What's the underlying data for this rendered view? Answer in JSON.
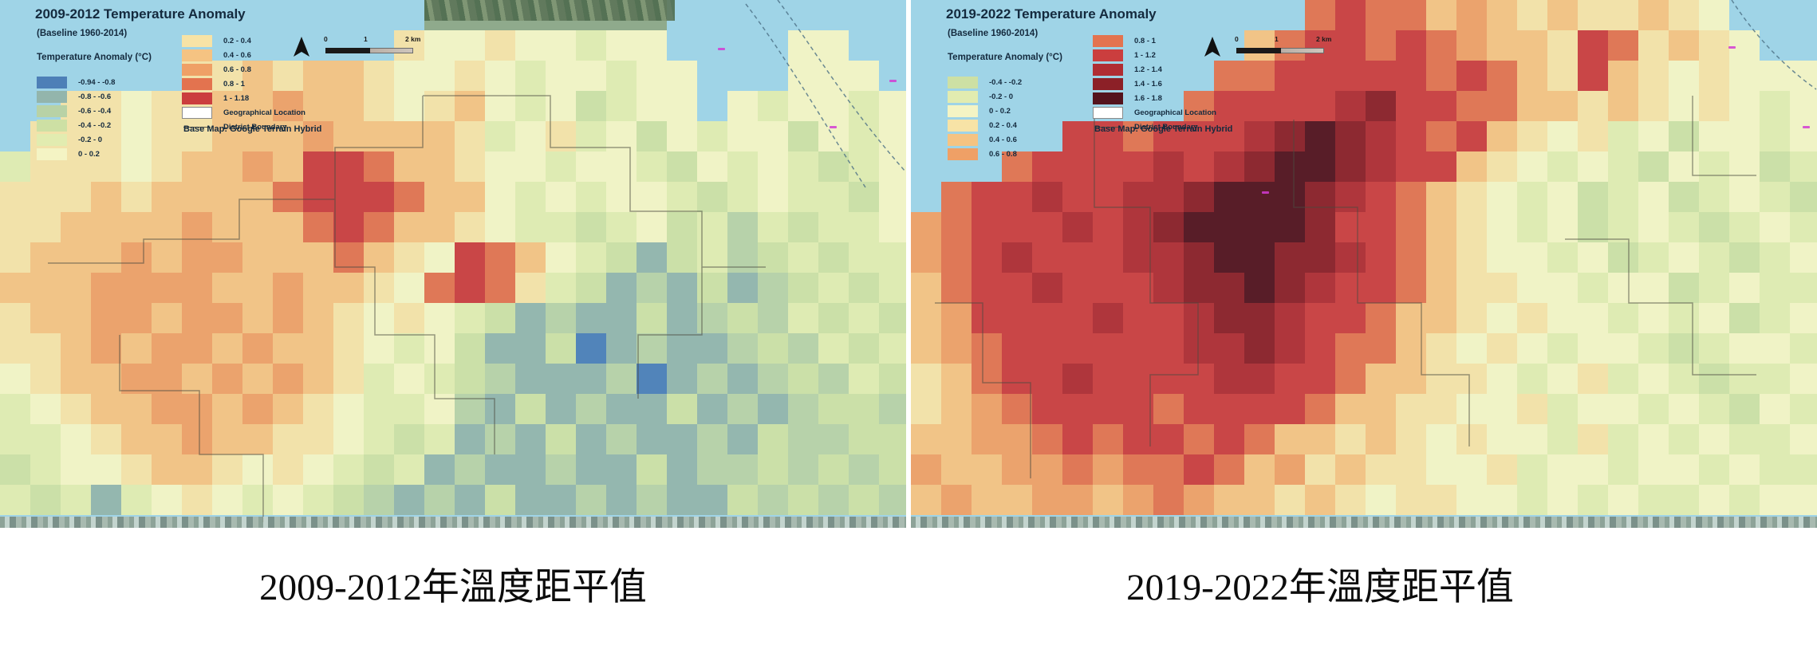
{
  "palette": {
    "a": "#4d7fb7",
    "b": "#93b5ac",
    "c": "#b8d2a6",
    "d": "#cde0a4",
    "e": "#e2ecb0",
    "f": "#f4f4c4",
    "g": "#f7e3a6",
    "h": "#f5c382",
    "i": "#efa066",
    "j": "#e3734f",
    "k": "#cb3e3e",
    "l": "#b02d33",
    "m": "#8c2027",
    "n": "#54131d",
    "t": "#8ea887"
  },
  "water_color": "#9fd4e7",
  "panels": [
    {
      "title": "2009-2012 Temperature Anomaly",
      "baseline": "(Baseline 1960-2014)",
      "legend_title": "Temperature Anomaly (°C)",
      "bins_left": [
        {
          "label": "-0.94 - -0.8",
          "color": "a"
        },
        {
          "label": "-0.8 - -0.6",
          "color": "b"
        },
        {
          "label": "-0.6 - -0.4",
          "color": "c"
        },
        {
          "label": "-0.4 - -0.2",
          "color": "d"
        },
        {
          "label": "-0.2 - 0",
          "color": "e"
        },
        {
          "label": "0 - 0.2",
          "color": "f"
        }
      ],
      "bins_right": [
        {
          "label": "0.2 - 0.4",
          "color": "g"
        },
        {
          "label": "0.4 - 0.6",
          "color": "h"
        },
        {
          "label": "0.6 - 0.8",
          "color": "i"
        },
        {
          "label": "0.8 - 1",
          "color": "j"
        },
        {
          "label": "1 - 1.18",
          "color": "k"
        }
      ],
      "geographical_location_label": "Geographical Location",
      "district_boundary_label": "District Boundary",
      "basemap_label": "Base Map: Google Terrain Hybrid",
      "scale": [
        "0",
        "1",
        "2 km"
      ],
      "caption": "2009-2012年溫度距平值",
      "grid": [
        "..............tttttttt........",
        ".............gffgffeff....ff..",
        "......gghghhgffgfeffeff...fff.",
        "..ggfgghhihhgfghfefdeff.feffef",
        ".gggfgghhhihhhhgefgefdfeffdfef",
        "egggfghhihkkjhhgffeffedfefedef",
        "ggghghhhhjkkkjhhfefeffedefeedf",
        "gghhhhihhhjkjhhgfeedefdecedeef",
        "ghhhihiihhhjhgfkjhfedbdecdedee",
        "hhhiiiihhihhgfjkjgedbcbdbcdede",
        "ghhiihiihihgfgfedbcbbdbcdceded",
        "gghihiihihhgfefdbbdabcbbcdcede",
        "fghhiihihihgefedcbbbcabcbcdced",
        "efghhiihihgfeefcbdbcbbdbcbcddc",
        "eefghhihhggfedebcbdbcbbcbdccdd",
        "deffghhgfgfedebcbbcbbdbccdcdcd",
        "edebefgfefedcbcbdbbcbcbbdcdcdc"
      ]
    },
    {
      "title": "2019-2022 Temperature Anomaly",
      "baseline": "(Baseline 1960-2014)",
      "legend_title": "Temperature Anomaly (°C)",
      "bins_left": [
        {
          "label": "-0.4 - -0.2",
          "color": "d"
        },
        {
          "label": "-0.2 - 0",
          "color": "e"
        },
        {
          "label": "0 - 0.2",
          "color": "f"
        },
        {
          "label": "0.2 - 0.4",
          "color": "g"
        },
        {
          "label": "0.4 - 0.6",
          "color": "h"
        },
        {
          "label": "0.6 - 0.8",
          "color": "i"
        }
      ],
      "bins_right": [
        {
          "label": "0.8 - 1",
          "color": "j"
        },
        {
          "label": "1 - 1.2",
          "color": "k"
        },
        {
          "label": "1.2 - 1.4",
          "color": "l"
        },
        {
          "label": "1.4 - 1.6",
          "color": "m"
        },
        {
          "label": "1.6 - 1.8",
          "color": "n"
        }
      ],
      "geographical_location_label": "Geographical Location",
      "district_boundary_label": "District Boundary",
      "basemap_label": "Base Map: Google Terrain Hybrid",
      "scale": [
        "0",
        "1",
        "2 km"
      ],
      "caption": "2019-2022年溫度距平值",
      "grid": [
        ".............jkjjhihghgghgf...",
        "...........hjkkjkjihhgkjghgf..",
        "..........jjkkkkkjkjhgkhgfgfff",
        ".........jkkkklmkkjjhhghgfgfef",
        ".....kkjkkklmnmlkjkhgfgefdffef",
        "...jkkkklklmnnmlkkhgfefedfefde",
        ".jkklkkllmnnnmlkjhgfefdefdefed",
        "ijkkklklmnnnnmkkjhgfefdefedefe",
        "ijklkkkllmnnmmlkjhgffefdefedef",
        "hjkklkkklmmnmlkkjhggffeffdefee",
        "hikkkklkklmmlkkjhhgfgffefefdef",
        "hijkkkkkkllmlkjjhgfgfeffedeffe",
        "ghjkklkkkkllkkjhhggfefgefedeef",
        "ghijkkkkjkkkkjhhggffgeffefedfe",
        "hhiijkjkkjkjhhghgfgffegefefeef",
        "ihhiijijjkjhighggffgeffeffefee",
        "hihhiihijihhghgfggffefefeefeff"
      ]
    }
  ]
}
